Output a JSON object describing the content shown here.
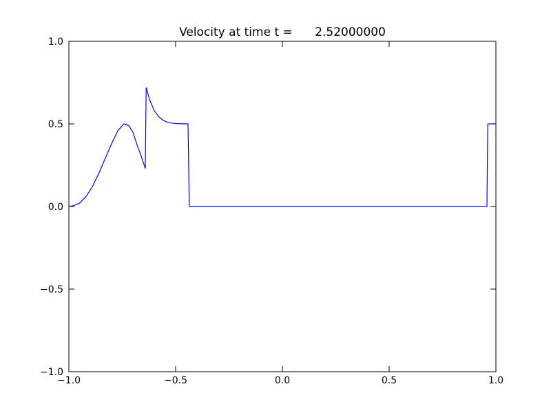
{
  "chart_data": {
    "type": "line",
    "title": "Velocity at time t =      2.52000000",
    "x": [
      -1.0,
      -0.98,
      -0.95,
      -0.92,
      -0.89,
      -0.86,
      -0.83,
      -0.8,
      -0.77,
      -0.742,
      -0.72,
      -0.7,
      -0.68,
      -0.66,
      -0.642,
      -0.638,
      -0.62,
      -0.6,
      -0.58,
      -0.56,
      -0.54,
      -0.52,
      -0.5,
      -0.442,
      -0.436,
      0.958,
      0.962,
      1.0
    ],
    "series": [
      {
        "name": "velocity",
        "color": "#0000ff",
        "values": [
          0.0,
          0.005,
          0.02,
          0.06,
          0.12,
          0.2,
          0.29,
          0.38,
          0.46,
          0.5,
          0.49,
          0.45,
          0.37,
          0.3,
          0.23,
          0.72,
          0.64,
          0.58,
          0.545,
          0.523,
          0.511,
          0.505,
          0.502,
          0.5,
          0.0,
          0.0,
          0.5,
          0.5
        ]
      }
    ],
    "xlim": [
      -1.0,
      1.0
    ],
    "ylim": [
      -1.0,
      1.0
    ],
    "xticks": [
      {
        "value": -1.0,
        "label": "−1.0"
      },
      {
        "value": -0.5,
        "label": "−0.5"
      },
      {
        "value": 0.0,
        "label": "0.0"
      },
      {
        "value": 0.5,
        "label": "0.5"
      },
      {
        "value": 1.0,
        "label": "1.0"
      }
    ],
    "yticks": [
      {
        "value": -1.0,
        "label": "−1.0"
      },
      {
        "value": -0.5,
        "label": "−0.5"
      },
      {
        "value": 0.0,
        "label": "0.0"
      },
      {
        "value": 0.5,
        "label": "0.5"
      },
      {
        "value": 1.0,
        "label": "1.0"
      }
    ],
    "grid": false
  }
}
